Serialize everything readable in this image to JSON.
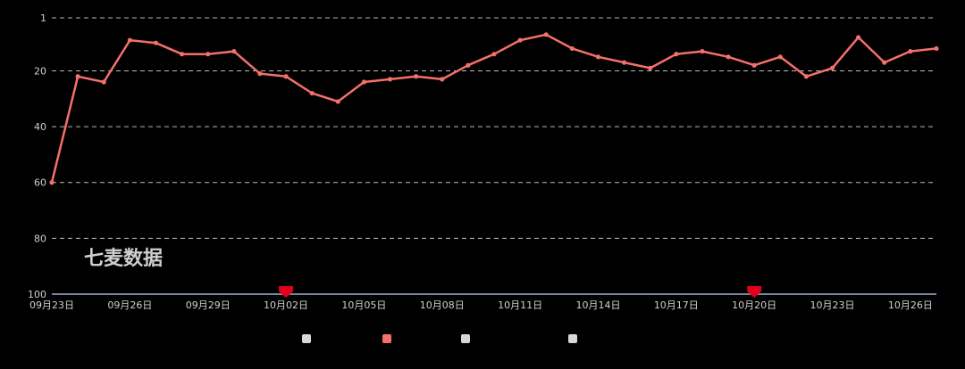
{
  "watermark": "七麦数据",
  "chart_data": {
    "type": "line",
    "y_axis": {
      "reversed": true,
      "ylim": [
        1,
        100
      ],
      "ticks": [
        1,
        20,
        40,
        60,
        80,
        100
      ]
    },
    "x_axis": {
      "tick_labels": [
        "09月23日",
        "09月26日",
        "09月29日",
        "10月02日",
        "10月05日",
        "10月08日",
        "10月11日",
        "10月14日",
        "10月17日",
        "10月20日",
        "10月23日",
        "10月26日"
      ]
    },
    "grid": true,
    "legend_position": "bottom",
    "series": [
      {
        "name": "",
        "color": "#f4706b",
        "dates": [
          "09-23",
          "09-24",
          "09-25",
          "09-26",
          "09-27",
          "09-28",
          "09-29",
          "09-30",
          "10-01",
          "10-02",
          "10-03",
          "10-04",
          "10-05",
          "10-06",
          "10-07",
          "10-08",
          "10-09",
          "10-10",
          "10-11",
          "10-12",
          "10-13",
          "10-14",
          "10-15",
          "10-16",
          "10-17",
          "10-18",
          "10-19",
          "10-20",
          "10-21",
          "10-22",
          "10-23",
          "10-24",
          "10-25",
          "10-26",
          "10-27"
        ],
        "values": [
          60,
          22,
          24,
          9,
          10,
          14,
          14,
          13,
          21,
          22,
          28,
          31,
          24,
          23,
          22,
          23,
          18,
          14,
          9,
          7,
          12,
          15,
          17,
          19,
          14,
          13,
          15,
          18,
          15,
          22,
          19,
          8,
          17,
          13,
          12
        ]
      }
    ],
    "legend_entries": [
      {
        "label": "",
        "color": "#d8d8d8"
      },
      {
        "label": "",
        "color": "#f4706b"
      },
      {
        "label": "",
        "color": "#d8d8d8"
      },
      {
        "label": "",
        "color": "#d8d8d8"
      }
    ],
    "markers": [
      {
        "x_label": "10月02日",
        "color": "#e0001b"
      },
      {
        "x_label": "10月20日",
        "color": "#e0001b"
      }
    ]
  }
}
